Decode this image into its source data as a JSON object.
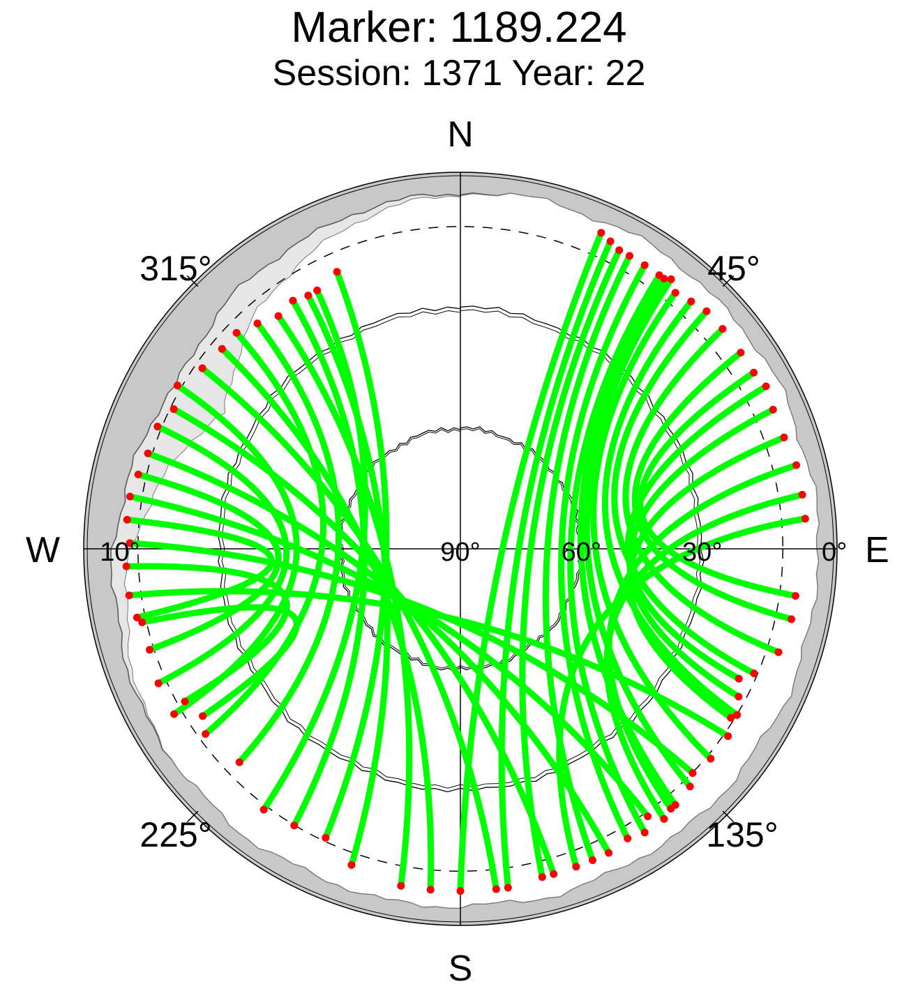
{
  "chart_data": {
    "type": "scatter",
    "projection": "polar-skyplot",
    "title": "Marker: 1189.224",
    "subtitle": "Session: 1371 Year: 22",
    "compass": {
      "north": "N",
      "east": "E",
      "south": "S",
      "west": "W"
    },
    "azimuth_labels": [
      {
        "azimuth": 45,
        "label": "45°"
      },
      {
        "azimuth": 135,
        "label": "135°"
      },
      {
        "azimuth": 225,
        "label": "225°"
      },
      {
        "azimuth": 315,
        "label": "315°"
      }
    ],
    "elevation_labels": [
      {
        "elevation": 0,
        "label": "0°"
      },
      {
        "elevation": 10,
        "label": "10°"
      },
      {
        "elevation": 30,
        "label": "30°"
      },
      {
        "elevation": 60,
        "label": "60°"
      },
      {
        "elevation": 90,
        "label": "90°"
      }
    ],
    "elevation_rings": [
      30,
      60
    ],
    "cutoff_elevation": 10,
    "colors": {
      "track": "#00ff00",
      "endpoint": "#ff0000",
      "horizon_mask": "#c8c8c8",
      "light_mask": "#e6e6e6",
      "grid": "#000000"
    },
    "tracks": [
      {
        "start": [
          336,
          12
        ],
        "end": [
          205,
          8
        ]
      },
      {
        "start": [
          331,
          14
        ],
        "end": [
          217,
          6
        ]
      },
      {
        "start": [
          329,
          14
        ],
        "end": [
          199,
          4
        ]
      },
      {
        "start": [
          326,
          13
        ],
        "end": [
          211,
          7
        ]
      },
      {
        "start": [
          318,
          12
        ],
        "end": [
          226,
          11
        ]
      },
      {
        "start": [
          322,
          14
        ],
        "end": [
          190,
          2
        ]
      },
      {
        "start": [
          314,
          10
        ],
        "end": [
          234,
          9
        ]
      },
      {
        "start": [
          310,
          10
        ],
        "end": [
          185,
          2
        ]
      },
      {
        "start": [
          305,
          9
        ],
        "end": [
          174,
          2
        ]
      },
      {
        "start": [
          300,
          6
        ],
        "end": [
          240,
          5
        ]
      },
      {
        "start": [
          296,
          8
        ],
        "end": [
          164,
          3
        ]
      },
      {
        "start": [
          292,
          6
        ],
        "end": [
          246,
          5
        ]
      },
      {
        "start": [
          287,
          6
        ],
        "end": [
          154,
          3
        ]
      },
      {
        "start": [
          283,
          5
        ],
        "end": [
          252,
          6
        ]
      },
      {
        "start": [
          279,
          4
        ],
        "end": [
          145,
          6
        ]
      },
      {
        "start": [
          275,
          4
        ],
        "end": [
          258,
          5
        ]
      },
      {
        "start": [
          271,
          5
        ],
        "end": [
          134,
          7
        ]
      },
      {
        "start": [
          267,
          4
        ],
        "end": [
          241,
          9
        ]
      },
      {
        "start": [
          262,
          4
        ],
        "end": [
          125,
          6
        ]
      },
      {
        "start": [
          257,
          6
        ],
        "end": [
          237,
          11
        ]
      },
      {
        "start": [
          24,
          1
        ],
        "end": [
          180,
          2
        ]
      },
      {
        "start": [
          26,
          2
        ],
        "end": [
          172,
          2
        ]
      },
      {
        "start": [
          28,
          3
        ],
        "end": [
          166,
          3
        ]
      },
      {
        "start": [
          30,
          3
        ],
        "end": [
          157,
          3
        ]
      },
      {
        "start": [
          33,
          3
        ],
        "end": [
          150,
          4
        ]
      },
      {
        "start": [
          36,
          3
        ],
        "end": [
          147,
          3
        ]
      },
      {
        "start": [
          37,
          3
        ],
        "end": [
          140,
          4
        ]
      },
      {
        "start": [
          38,
          2
        ],
        "end": [
          136,
          5
        ]
      },
      {
        "start": [
          40,
          4
        ],
        "end": [
          130,
          6
        ]
      },
      {
        "start": [
          43,
          3
        ],
        "end": [
          121,
          7
        ]
      },
      {
        "start": [
          46,
          2
        ],
        "end": [
          113,
          8
        ]
      },
      {
        "start": [
          50,
          2
        ],
        "end": [
          108,
          4
        ]
      },
      {
        "start": [
          55,
          2
        ],
        "end": [
          102,
          3
        ]
      },
      {
        "start": [
          59,
          2
        ],
        "end": [
          98,
          3
        ]
      },
      {
        "start": [
          62,
          1
        ],
        "end": [
          115,
          11
        ]
      },
      {
        "start": [
          66,
          2
        ],
        "end": [
          118,
          9
        ]
      },
      {
        "start": [
          71,
          2
        ],
        "end": [
          122,
          8
        ]
      },
      {
        "start": [
          76,
          1
        ],
        "end": [
          141,
          4
        ]
      },
      {
        "start": [
          81,
          1
        ],
        "end": [
          143,
          3
        ]
      },
      {
        "start": [
          85,
          1
        ],
        "end": [
          160,
          3
        ]
      }
    ]
  }
}
